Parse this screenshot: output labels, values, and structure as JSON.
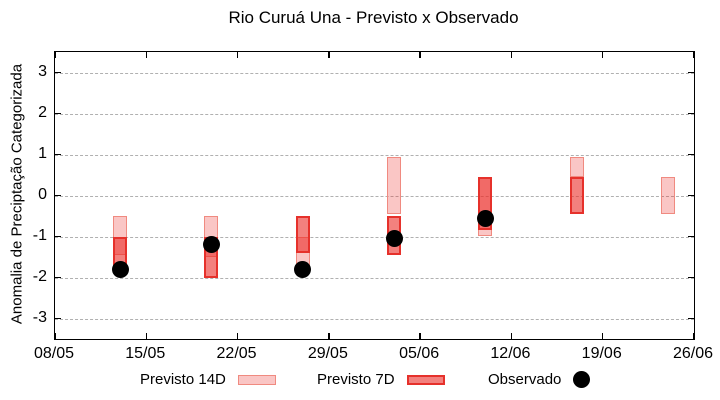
{
  "title": "Rio Curuá Una - Previsto x Observado",
  "y_axis": {
    "label": "Anomalia de Preciptação Categorizada"
  },
  "legend": {
    "items": [
      {
        "label": "Previsto 14D"
      },
      {
        "label": "Previsto 7D"
      },
      {
        "label": "Observado"
      }
    ]
  },
  "colors": {
    "previsto14d_fill": "rgba(235,45,40,0.27)",
    "previsto14d_border": "#f08a80",
    "previsto7d_fill": "rgba(235,45,40,0.60)",
    "previsto7d_border": "#e6312b",
    "observado": "#000000",
    "grid": "#b0b0b0",
    "frame": "#000000"
  },
  "chart_data": {
    "type": "bar",
    "subtype": "range-bars-with-scatter",
    "title": "Rio Curuá Una - Previsto x Observado",
    "xlabel": "",
    "ylabel": "Anomalia de Preciptação Categorizada",
    "ylim": [
      -3.5,
      3.5
    ],
    "y_ticks": [
      3,
      2,
      1,
      0,
      -1,
      -2,
      -3
    ],
    "x_total_days": 49,
    "x_ticks": [
      {
        "label": "08/05",
        "day": 0
      },
      {
        "label": "15/05",
        "day": 7
      },
      {
        "label": "22/05",
        "day": 14
      },
      {
        "label": "29/05",
        "day": 21
      },
      {
        "label": "05/06",
        "day": 28
      },
      {
        "label": "12/06",
        "day": 35
      },
      {
        "label": "19/06",
        "day": 42
      },
      {
        "label": "26/06",
        "day": 49
      }
    ],
    "grid": true,
    "legend_position": "bottom",
    "series": [
      {
        "name": "Previsto 14D",
        "type": "range_bar",
        "points": [
          {
            "date": "13/05",
            "day": 5,
            "high": -0.5,
            "low": -1.45
          },
          {
            "date": "20/05",
            "day": 12,
            "high": -0.5,
            "low": -1.5
          },
          {
            "date": "27/05",
            "day": 19,
            "high": -1.0,
            "low": -1.8
          },
          {
            "date": "03/06",
            "day": 26,
            "high": 0.95,
            "low": -0.45
          },
          {
            "date": "10/06",
            "day": 33,
            "high": 0.45,
            "low": -1.0
          },
          {
            "date": "17/06",
            "day": 40,
            "high": 0.95,
            "low": 0.45
          },
          {
            "date": "24/06",
            "day": 47,
            "high": 0.45,
            "low": -0.45
          }
        ]
      },
      {
        "name": "Previsto 7D",
        "type": "range_bar",
        "points": [
          {
            "date": "13/05",
            "day": 5,
            "high": -1.0,
            "low": -1.75
          },
          {
            "date": "20/05",
            "day": 12,
            "high": -1.0,
            "low": -2.0
          },
          {
            "date": "27/05",
            "day": 19,
            "high": -0.5,
            "low": -1.4
          },
          {
            "date": "03/06",
            "day": 26,
            "high": -0.5,
            "low": -1.45
          },
          {
            "date": "10/06",
            "day": 33,
            "high": 0.45,
            "low": -0.85
          },
          {
            "date": "17/06",
            "day": 40,
            "high": 0.45,
            "low": -0.45
          }
        ]
      },
      {
        "name": "Observado",
        "type": "scatter",
        "points": [
          {
            "date": "13/05",
            "day": 5,
            "value": -1.8
          },
          {
            "date": "20/05",
            "day": 12,
            "value": -1.2
          },
          {
            "date": "27/05",
            "day": 19,
            "value": -1.8
          },
          {
            "date": "03/06",
            "day": 26,
            "value": -1.05
          },
          {
            "date": "10/06",
            "day": 33,
            "value": -0.55
          }
        ]
      }
    ]
  }
}
